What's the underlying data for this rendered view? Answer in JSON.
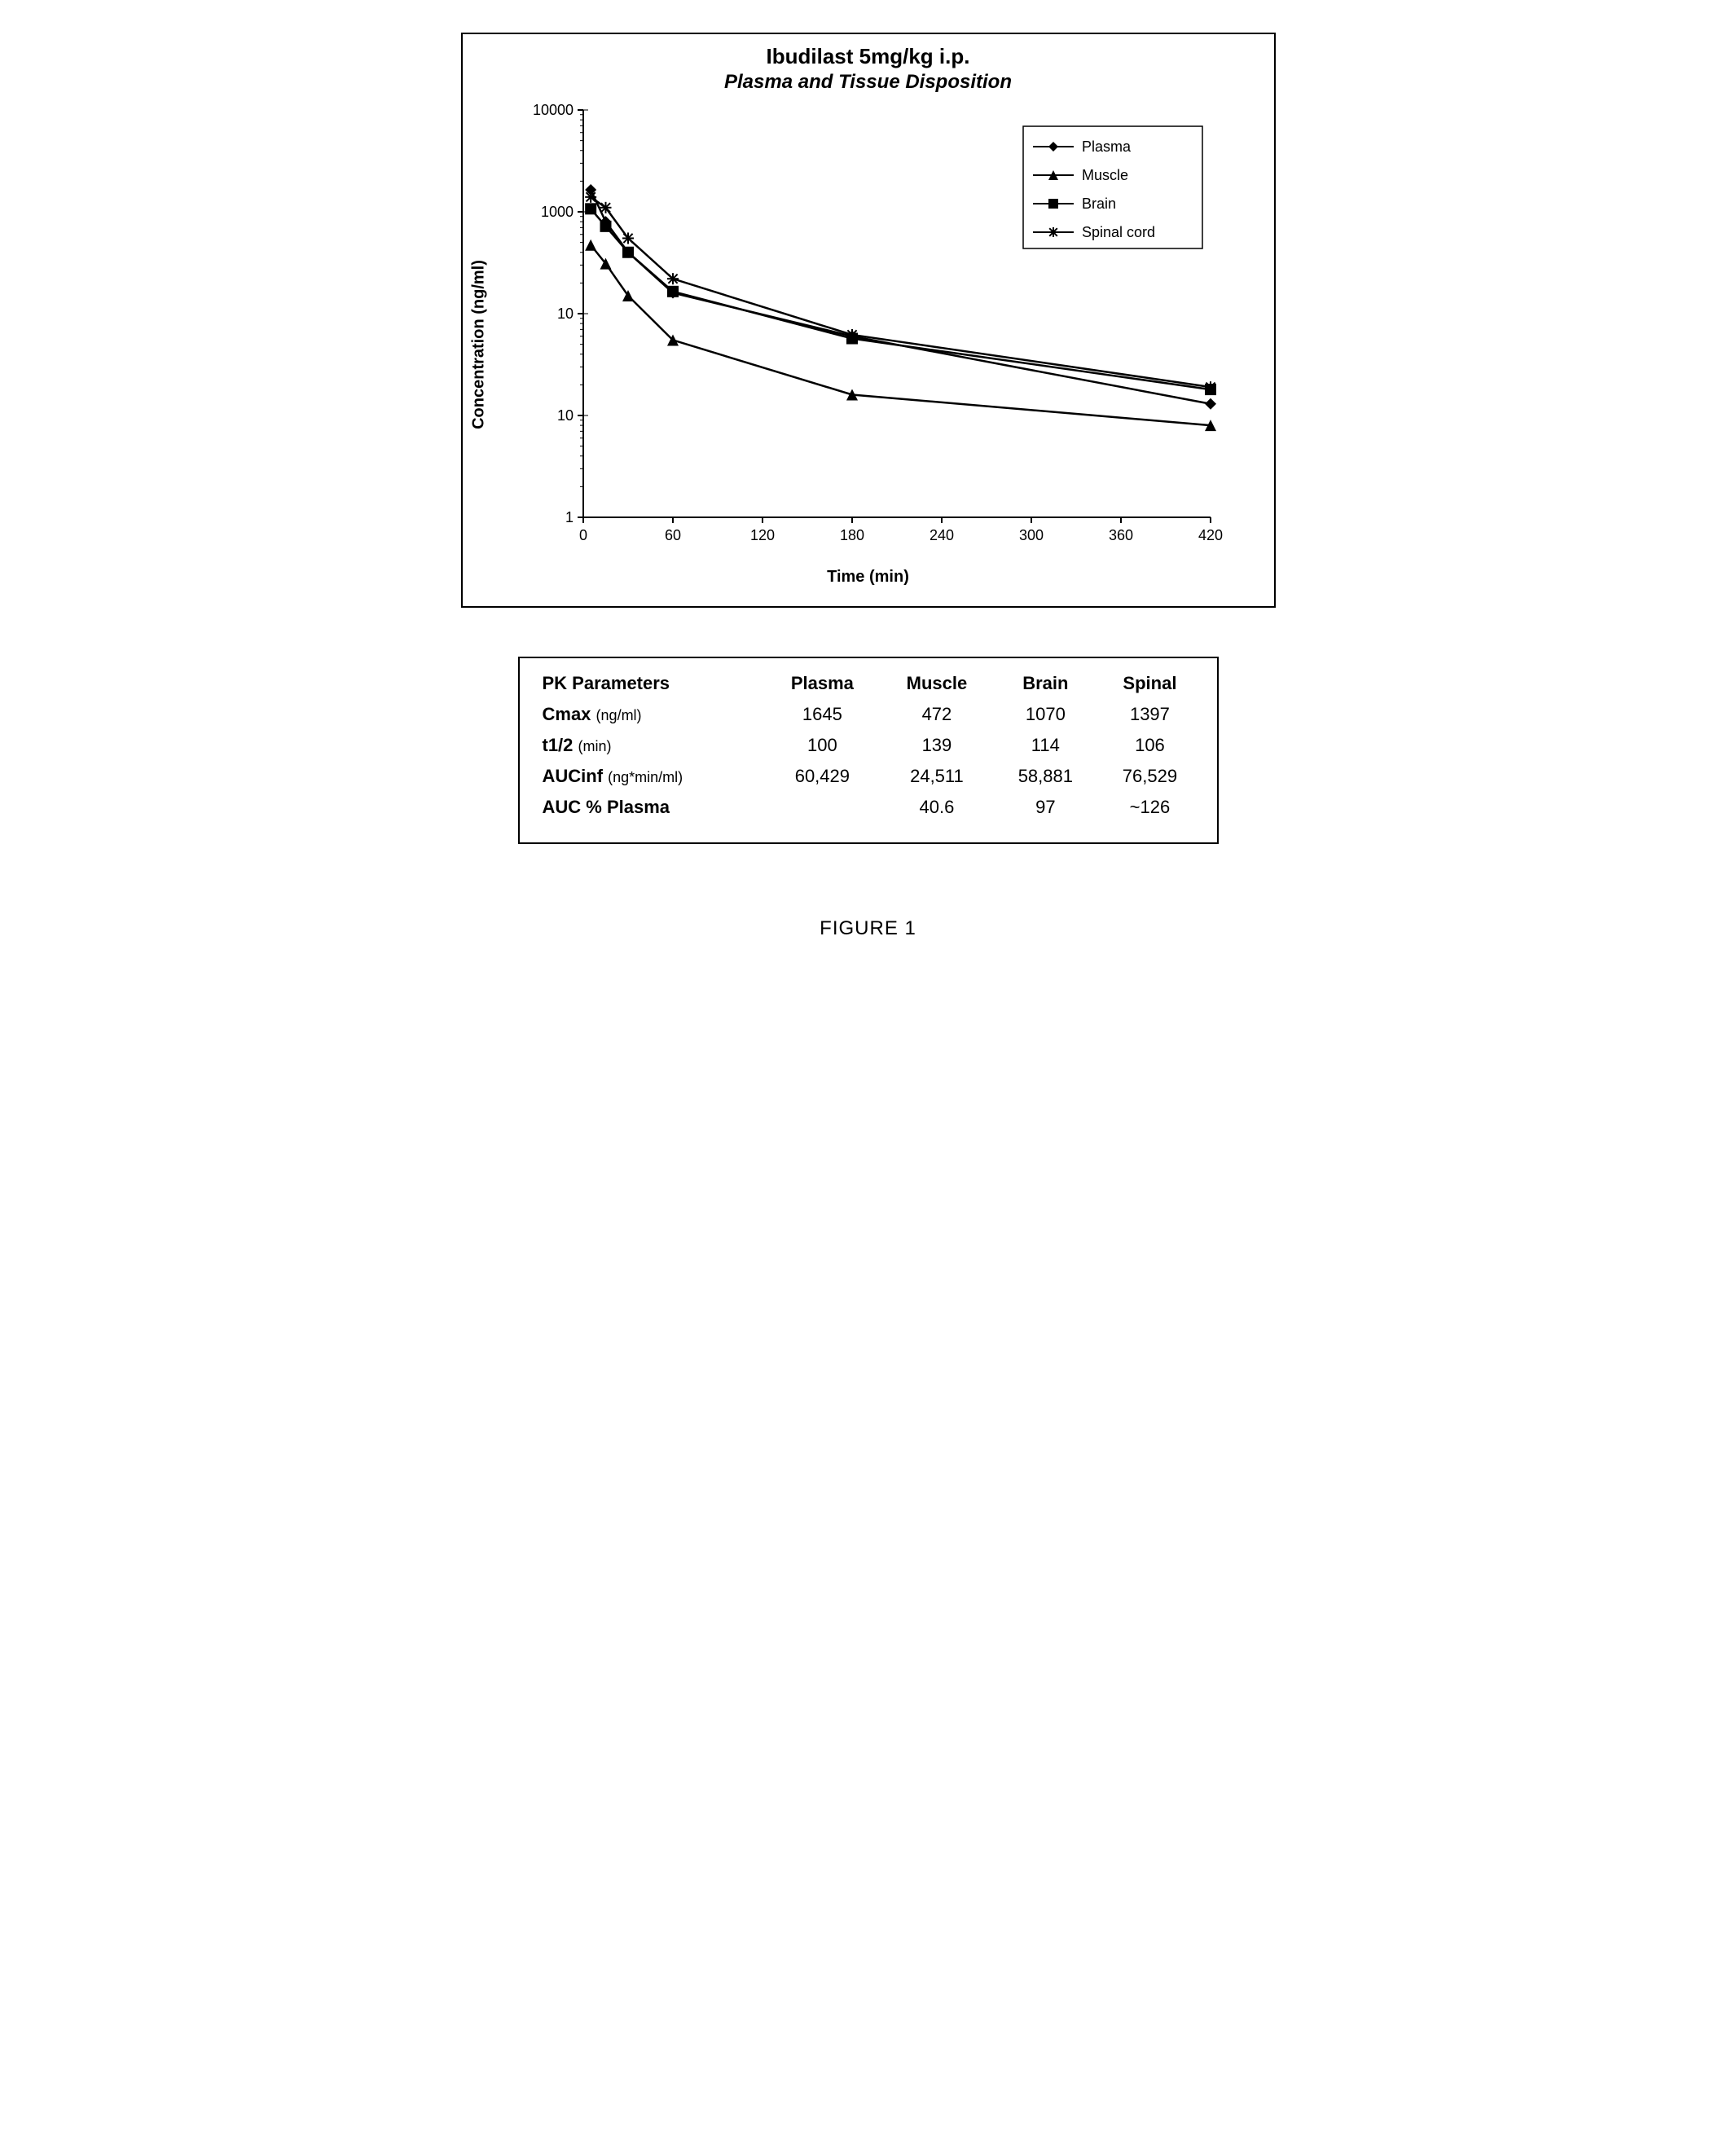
{
  "chart": {
    "type": "line",
    "title": "Ibudilast 5mg/kg  i.p.",
    "subtitle": "Plasma and Tissue Disposition",
    "xlabel": "Time (min)",
    "ylabel": "Concentration (ng/ml)",
    "x_ticks": [
      0,
      60,
      120,
      180,
      240,
      300,
      360,
      420
    ],
    "xlim": [
      0,
      420
    ],
    "y_scale": "log",
    "y_ticks": [
      1,
      10,
      10,
      1000,
      10000
    ],
    "y_tick_labels": [
      "1",
      "10",
      "10",
      "1000",
      "10000"
    ],
    "ylim_log": [
      0,
      4
    ],
    "background_color": "#ffffff",
    "axis_color": "#000000",
    "tick_color": "#000000",
    "line_width": 2.5,
    "marker_size": 7,
    "legend": {
      "position": "upper-right",
      "border_color": "#000000",
      "items": [
        "Plasma",
        "Muscle",
        "Brain",
        "Spinal cord"
      ]
    },
    "series": [
      {
        "name": "Plasma",
        "marker": "diamond",
        "color": "#000000",
        "x": [
          5,
          15,
          30,
          60,
          180,
          420
        ],
        "y": [
          1645,
          800,
          400,
          160,
          60,
          13
        ]
      },
      {
        "name": "Muscle",
        "marker": "triangle",
        "color": "#000000",
        "x": [
          5,
          15,
          30,
          60,
          180,
          420
        ],
        "y": [
          472,
          310,
          150,
          55,
          16,
          8
        ]
      },
      {
        "name": "Brain",
        "marker": "square",
        "color": "#000000",
        "x": [
          5,
          15,
          30,
          60,
          180,
          420
        ],
        "y": [
          1070,
          720,
          400,
          165,
          57,
          18
        ]
      },
      {
        "name": "Spinal cord",
        "marker": "asterisk",
        "color": "#000000",
        "x": [
          5,
          15,
          30,
          60,
          180,
          420
        ],
        "y": [
          1397,
          1100,
          550,
          220,
          62,
          19
        ]
      }
    ]
  },
  "table": {
    "columns": [
      "PK Parameters",
      "Plasma",
      "Muscle",
      "Brain",
      "Spinal"
    ],
    "rows": [
      {
        "name": "Cmax",
        "unit": "(ng/ml)",
        "vals": [
          "1645",
          "472",
          "1070",
          "1397"
        ]
      },
      {
        "name": "t1/2",
        "unit": "(min)",
        "vals": [
          "100",
          "139",
          "114",
          "106"
        ]
      },
      {
        "name": "AUCinf",
        "unit": "(ng*min/ml)",
        "vals": [
          "60,429",
          "24,511",
          "58,881",
          "76,529"
        ]
      },
      {
        "name": "AUC % Plasma",
        "unit": "",
        "vals": [
          "",
          "40.6",
          "97",
          "~126"
        ]
      }
    ],
    "font_size": 22,
    "border_color": "#000000"
  },
  "caption": "FIGURE 1"
}
